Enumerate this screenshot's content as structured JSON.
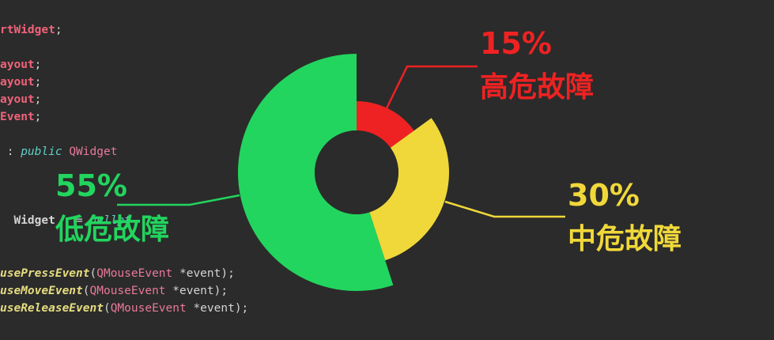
{
  "editor": {
    "lines": [
      {
        "segments": [
          {
            "text": "rtWidget",
            "cls": "c-red c-bold"
          },
          {
            "text": ";",
            "cls": "c-white"
          }
        ]
      },
      {
        "segments": [
          {
            "text": "ayout",
            "cls": "c-red c-bold"
          },
          {
            "text": ";",
            "cls": "c-white"
          }
        ]
      },
      {
        "segments": [
          {
            "text": "ayout",
            "cls": "c-red c-bold"
          },
          {
            "text": ";",
            "cls": "c-white"
          }
        ]
      },
      {
        "segments": [
          {
            "text": "ayout",
            "cls": "c-red c-bold"
          },
          {
            "text": ";",
            "cls": "c-white"
          }
        ]
      },
      {
        "segments": [
          {
            "text": "Event",
            "cls": "c-red c-bold"
          },
          {
            "text": ";",
            "cls": "c-white"
          }
        ]
      },
      {
        "segments": [
          {
            "text": " : ",
            "cls": "c-white"
          },
          {
            "text": "public",
            "cls": "c-kw"
          },
          {
            "text": " QWidget",
            "cls": "c-pink"
          }
        ]
      },
      {
        "segments": [
          {
            "text": "  Widget",
            "cls": "c-white c-bold"
          },
          {
            "text": "   = ",
            "cls": "c-white"
          },
          {
            "text": "nullpt",
            "cls": "c-kw"
          }
        ]
      },
      {
        "segments": [
          {
            "text": "usePressEvent",
            "cls": "c-fn"
          },
          {
            "text": "(",
            "cls": "c-white"
          },
          {
            "text": "QMouseEvent",
            "cls": "c-pink"
          },
          {
            "text": " *event);",
            "cls": "c-white"
          }
        ]
      },
      {
        "segments": [
          {
            "text": "useMoveEvent",
            "cls": "c-fn"
          },
          {
            "text": "(",
            "cls": "c-white"
          },
          {
            "text": "QMouseEvent",
            "cls": "c-pink"
          },
          {
            "text": " *event);",
            "cls": "c-white"
          }
        ]
      },
      {
        "segments": [
          {
            "text": "useReleaseEvent",
            "cls": "c-fn"
          },
          {
            "text": "(",
            "cls": "c-white"
          },
          {
            "text": "QMouseEvent",
            "cls": "c-pink"
          },
          {
            "text": " *event);",
            "cls": "c-white"
          }
        ]
      }
    ]
  },
  "chart_data": {
    "type": "pie",
    "variant": "donut",
    "slices": [
      {
        "label": "高危故障",
        "value": 15,
        "percent_label": "15%",
        "color": "#ee2222"
      },
      {
        "label": "中危故障",
        "value": 30,
        "percent_label": "30%",
        "color": "#f0d83a"
      },
      {
        "label": "低危故障",
        "value": 55,
        "percent_label": "55%",
        "color": "#22d55e"
      }
    ]
  },
  "colors": {
    "background": "#2b2b2b",
    "hole": "#2b2b2b"
  }
}
